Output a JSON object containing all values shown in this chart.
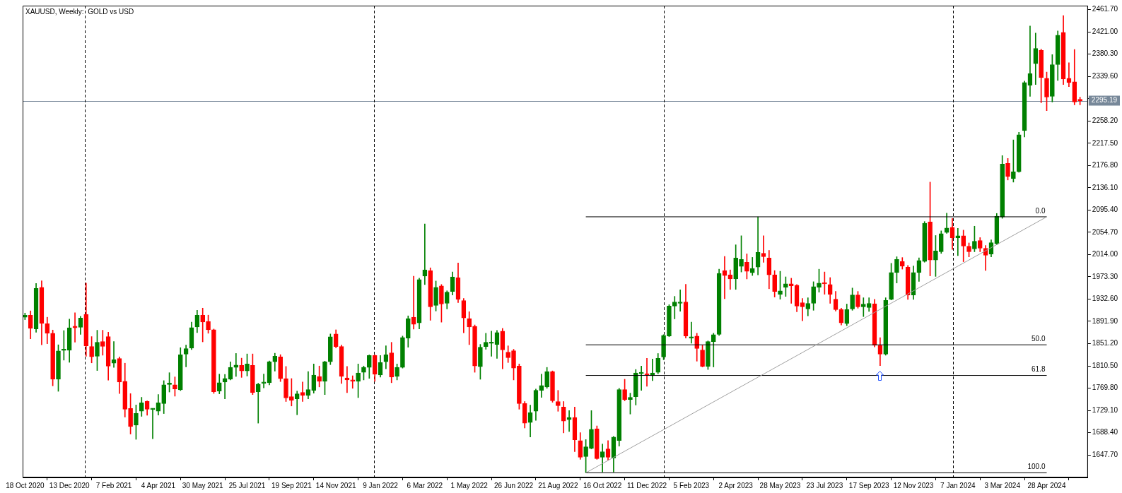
{
  "chart_data": {
    "type": "candlestick",
    "title": "XAUUSD, Weekly:  GOLD vs USD",
    "x": [
      "2020-10-18",
      "2020-10-25",
      "2020-11-01",
      "2020-11-08",
      "2020-11-15",
      "2020-11-22",
      "2020-11-29",
      "2020-12-06",
      "2020-12-13",
      "2020-12-20",
      "2020-12-27",
      "2021-01-03",
      "2021-01-10",
      "2021-01-17",
      "2021-01-24",
      "2021-01-31",
      "2021-02-07",
      "2021-02-14",
      "2021-02-21",
      "2021-02-28",
      "2021-03-07",
      "2021-03-14",
      "2021-03-21",
      "2021-03-28",
      "2021-04-04",
      "2021-04-11",
      "2021-04-18",
      "2021-04-25",
      "2021-05-02",
      "2021-05-09",
      "2021-05-16",
      "2021-05-23",
      "2021-05-30",
      "2021-06-06",
      "2021-06-13",
      "2021-06-20",
      "2021-06-27",
      "2021-07-04",
      "2021-07-11",
      "2021-07-18",
      "2021-07-25",
      "2021-08-01",
      "2021-08-08",
      "2021-08-15",
      "2021-08-22",
      "2021-08-29",
      "2021-09-05",
      "2021-09-12",
      "2021-09-19",
      "2021-09-26",
      "2021-10-03",
      "2021-10-10",
      "2021-10-17",
      "2021-10-24",
      "2021-10-31",
      "2021-11-07",
      "2021-11-14",
      "2021-11-21",
      "2021-11-28",
      "2021-12-05",
      "2021-12-12",
      "2021-12-19",
      "2021-12-26",
      "2022-01-02",
      "2022-01-09",
      "2022-01-16",
      "2022-01-23",
      "2022-01-30",
      "2022-02-06",
      "2022-02-13",
      "2022-02-20",
      "2022-02-27",
      "2022-03-06",
      "2022-03-13",
      "2022-03-20",
      "2022-03-27",
      "2022-04-03",
      "2022-04-10",
      "2022-04-17",
      "2022-04-24",
      "2022-05-01",
      "2022-05-08",
      "2022-05-15",
      "2022-05-22",
      "2022-05-29",
      "2022-06-05",
      "2022-06-12",
      "2022-06-19",
      "2022-06-26",
      "2022-07-03",
      "2022-07-10",
      "2022-07-17",
      "2022-07-24",
      "2022-07-31",
      "2022-08-07",
      "2022-08-14",
      "2022-08-21",
      "2022-08-28",
      "2022-09-04",
      "2022-09-11",
      "2022-09-18",
      "2022-09-25",
      "2022-10-02",
      "2022-10-09",
      "2022-10-16",
      "2022-10-23",
      "2022-10-30",
      "2022-11-06",
      "2022-11-13",
      "2022-11-20",
      "2022-11-27",
      "2022-12-04",
      "2022-12-11",
      "2022-12-18",
      "2022-12-25",
      "2023-01-01",
      "2023-01-08",
      "2023-01-15",
      "2023-01-22",
      "2023-01-29",
      "2023-02-05",
      "2023-02-12",
      "2023-02-19",
      "2023-02-26",
      "2023-03-05",
      "2023-03-12",
      "2023-03-19",
      "2023-03-26",
      "2023-04-02",
      "2023-04-09",
      "2023-04-16",
      "2023-04-23",
      "2023-04-30",
      "2023-05-07",
      "2023-05-14",
      "2023-05-21",
      "2023-05-28",
      "2023-06-04",
      "2023-06-11",
      "2023-06-18",
      "2023-06-25",
      "2023-07-02",
      "2023-07-09",
      "2023-07-16",
      "2023-07-23",
      "2023-07-30",
      "2023-08-06",
      "2023-08-13",
      "2023-08-20",
      "2023-08-27",
      "2023-09-03",
      "2023-09-10",
      "2023-09-17",
      "2023-09-24",
      "2023-10-01",
      "2023-10-08",
      "2023-10-15",
      "2023-10-22",
      "2023-10-29",
      "2023-11-05",
      "2023-11-12",
      "2023-11-19",
      "2023-11-26",
      "2023-12-03",
      "2023-12-10",
      "2023-12-17",
      "2023-12-24",
      "2023-12-31",
      "2024-01-07",
      "2024-01-14",
      "2024-01-21",
      "2024-01-28",
      "2024-02-04",
      "2024-02-11",
      "2024-02-18",
      "2024-02-25",
      "2024-03-03",
      "2024-03-10",
      "2024-03-17",
      "2024-03-24",
      "2024-03-31",
      "2024-04-07",
      "2024-04-14",
      "2024-04-21",
      "2024-04-28",
      "2024-05-05",
      "2024-05-12",
      "2024-05-19",
      "2024-05-26",
      "2024-06-02",
      "2024-06-09"
    ],
    "ohlc": [
      [
        1899.4,
        1907,
        1895,
        1903.2
      ],
      [
        1903.2,
        1911,
        1860,
        1879
      ],
      [
        1878,
        1961,
        1872,
        1952
      ],
      [
        1954,
        1966,
        1849,
        1888
      ],
      [
        1887.5,
        1899.4,
        1851,
        1870
      ],
      [
        1870,
        1876,
        1774,
        1786
      ],
      [
        1786,
        1849,
        1764,
        1838
      ],
      [
        1838.6,
        1875,
        1821,
        1839.2
      ],
      [
        1839.1,
        1896,
        1817,
        1880
      ],
      [
        1883,
        1907.5,
        1854,
        1880
      ],
      [
        1881,
        1901,
        1868,
        1898
      ],
      [
        1904.5,
        1961.8,
        1828,
        1847
      ],
      [
        1846,
        1864,
        1816,
        1827
      ],
      [
        1828,
        1875.6,
        1802,
        1853.6
      ],
      [
        1855,
        1875.6,
        1830,
        1846
      ],
      [
        1864,
        1872,
        1784.4,
        1810
      ],
      [
        1815.4,
        1855,
        1807.7,
        1821.7
      ],
      [
        1824,
        1827,
        1760,
        1781
      ],
      [
        1782.3,
        1815.4,
        1716.9,
        1731.3
      ],
      [
        1732.6,
        1759.8,
        1685.9,
        1699.5
      ],
      [
        1702,
        1739,
        1676.2,
        1723.7
      ],
      [
        1727.5,
        1753,
        1718.2,
        1742.8
      ],
      [
        1745.4,
        1746.6,
        1720.3,
        1731.3
      ],
      [
        1730.6,
        1732.6,
        1677.4,
        1731.2
      ],
      [
        1727.5,
        1758.1,
        1720.7,
        1742.8
      ],
      [
        1741.5,
        1783.5,
        1723.3,
        1775.9
      ],
      [
        1776.4,
        1798,
        1762.7,
        1777
      ],
      [
        1775.9,
        1790.3,
        1755.1,
        1768.3
      ],
      [
        1766.6,
        1843.8,
        1765.3,
        1830.7
      ],
      [
        1831.9,
        1848.5,
        1808.6,
        1842.1
      ],
      [
        1842.9,
        1890.5,
        1840.4,
        1880.3
      ],
      [
        1881.6,
        1912.1,
        1871.4,
        1903.2
      ],
      [
        1903.2,
        1916,
        1854.4,
        1890.5
      ],
      [
        1891.8,
        1903.2,
        1870.1,
        1876.5
      ],
      [
        1876.5,
        1877.8,
        1760.2,
        1763.2
      ],
      [
        1764.4,
        1795.4,
        1759.4,
        1779.7
      ],
      [
        1781,
        1795,
        1750.4,
        1787.4
      ],
      [
        1786.1,
        1817.9,
        1784.8,
        1807.7
      ],
      [
        1807.7,
        1833.2,
        1791.2,
        1812
      ],
      [
        1811.5,
        1824.6,
        1789.4,
        1801.3
      ],
      [
        1801.3,
        1832.3,
        1792,
        1814
      ],
      [
        1811.5,
        1832.3,
        1758,
        1761.4
      ],
      [
        1763.1,
        1778.8,
        1705.8,
        1777.1
      ],
      [
        1778.4,
        1795.4,
        1770.3,
        1781
      ],
      [
        1779.7,
        1819.6,
        1775.8,
        1818.3
      ],
      [
        1817.9,
        1833.6,
        1800.9,
        1828
      ],
      [
        1826.8,
        1831,
        1781.8,
        1786.9
      ],
      [
        1787.3,
        1809.4,
        1745.3,
        1751.7
      ],
      [
        1754.2,
        1787.3,
        1737.2,
        1747.8
      ],
      [
        1750.4,
        1764.4,
        1721.1,
        1759.3
      ],
      [
        1761.9,
        1781,
        1745.3,
        1756.8
      ],
      [
        1756.8,
        1800,
        1750.4,
        1767
      ],
      [
        1765.7,
        1814,
        1760.6,
        1793.7
      ],
      [
        1791.1,
        1810.2,
        1772,
        1782.2
      ],
      [
        1782.2,
        1819.1,
        1758,
        1817.9
      ],
      [
        1817.9,
        1868.8,
        1812.8,
        1863.7
      ],
      [
        1868.8,
        1876.4,
        1843.3,
        1845.9
      ],
      [
        1845.9,
        1848.4,
        1778.4,
        1791.1
      ],
      [
        1788.6,
        1809.4,
        1761.4,
        1784.8
      ],
      [
        1784.8,
        1792.4,
        1769.5,
        1782.2
      ],
      [
        1782.2,
        1814,
        1752.5,
        1797.5
      ],
      [
        1798.8,
        1810.2,
        1784.8,
        1807.7
      ],
      [
        1807.7,
        1830.6,
        1787.7,
        1829.3
      ],
      [
        1829.3,
        1830.6,
        1782.2,
        1795
      ],
      [
        1793.7,
        1829.3,
        1789.9,
        1816.6
      ],
      [
        1817.9,
        1847.1,
        1805.1,
        1830.6
      ],
      [
        1834.4,
        1853.5,
        1779.7,
        1789.9
      ],
      [
        1791.1,
        1814,
        1784.8,
        1807.7
      ],
      [
        1807.7,
        1865,
        1806.4,
        1862.4
      ],
      [
        1861.2,
        1901.9,
        1844.6,
        1896.8
      ],
      [
        1899.4,
        1974.5,
        1877.7,
        1886.6
      ],
      [
        1889,
        1970.7,
        1878,
        1968.1
      ],
      [
        1974.5,
        2070,
        1959.2,
        1985.9
      ],
      [
        1984.7,
        1989.7,
        1893.8,
        1918.4
      ],
      [
        1921,
        1965.6,
        1910.8,
        1954.1
      ],
      [
        1956.7,
        1959.2,
        1890.4,
        1923.5
      ],
      [
        1924.8,
        1947.7,
        1914.6,
        1945.2
      ],
      [
        1946.5,
        1982.1,
        1940.1,
        1973.2
      ],
      [
        1971.9,
        1998.7,
        1926.1,
        1932.4
      ],
      [
        1929.9,
        1933.7,
        1870.9,
        1898.1
      ],
      [
        1896.8,
        1909.5,
        1849.3,
        1881.5
      ],
      [
        1882.8,
        1885.3,
        1798.8,
        1810.2
      ],
      [
        1808.9,
        1849.7,
        1786,
        1844.6
      ],
      [
        1845.9,
        1870.1,
        1840.8,
        1853.5
      ],
      [
        1851.5,
        1873.9,
        1828,
        1852.6
      ],
      [
        1849.7,
        1875.2,
        1824.2,
        1871.3
      ],
      [
        1873.9,
        1879,
        1805.1,
        1839.5
      ],
      [
        1835.7,
        1847.1,
        1816.6,
        1825.5
      ],
      [
        1838.2,
        1840.8,
        1784.8,
        1806.4
      ],
      [
        1810.2,
        1814,
        1731.3,
        1741.5
      ],
      [
        1741.5,
        1745.3,
        1696.9,
        1705.8
      ],
      [
        1707.1,
        1738.9,
        1680.4,
        1724.9
      ],
      [
        1727.5,
        1768.2,
        1710.9,
        1765.7
      ],
      [
        1765.7,
        1795.4,
        1752.9,
        1774.6
      ],
      [
        1772,
        1807.7,
        1769.5,
        1800
      ],
      [
        1800,
        1801.3,
        1744,
        1746.6
      ],
      [
        1745.3,
        1765.7,
        1727.5,
        1737.6
      ],
      [
        1735.1,
        1745.3,
        1688,
        1709.6
      ],
      [
        1712.2,
        1728.7,
        1690.5,
        1716
      ],
      [
        1716,
        1735.1,
        1653.6,
        1675.3
      ],
      [
        1674,
        1688.4,
        1639.6,
        1643.4
      ],
      [
        1644.7,
        1675.7,
        1615.4,
        1662.5
      ],
      [
        1660,
        1728.7,
        1658.7,
        1694.4
      ],
      [
        1695.6,
        1700.7,
        1639.6,
        1640.9
      ],
      [
        1643.4,
        1667.6,
        1616.7,
        1653.6
      ],
      [
        1658.7,
        1674,
        1638.3,
        1643.4
      ],
      [
        1642.1,
        1681.6,
        1616.7,
        1680.4
      ],
      [
        1674,
        1769.5,
        1663.8,
        1767
      ],
      [
        1767,
        1786,
        1746.6,
        1749.1
      ],
      [
        1749.1,
        1760.6,
        1722.4,
        1752.9
      ],
      [
        1754.2,
        1803.9,
        1738.9,
        1797.5
      ],
      [
        1796.2,
        1810.2,
        1765.7,
        1796.5
      ],
      [
        1796.2,
        1824.2,
        1773.3,
        1793.7
      ],
      [
        1792.4,
        1823,
        1783.5,
        1797.5
      ],
      [
        1798.8,
        1833.1,
        1796.2,
        1824.2
      ],
      [
        1826.8,
        1867.5,
        1821.7,
        1866.2
      ],
      [
        1865,
        1922.3,
        1864,
        1919.7
      ],
      [
        1919.7,
        1937.5,
        1896.4,
        1927.4
      ],
      [
        1924.8,
        1949.4,
        1910.4,
        1927.4
      ],
      [
        1927.4,
        1959.6,
        1861.2,
        1865
      ],
      [
        1861.2,
        1890.4,
        1851.8,
        1863.7
      ],
      [
        1865,
        1870.1,
        1819.1,
        1842.1
      ],
      [
        1839.5,
        1848.4,
        1808.5,
        1809.8
      ],
      [
        1809.8,
        1856.1,
        1803.9,
        1854.8
      ],
      [
        1854.8,
        1870.1,
        1808.5,
        1867.5
      ],
      [
        1868,
        1987.2,
        1866,
        1979.6
      ],
      [
        1984.7,
        2010.5,
        1933.3,
        1975.7
      ],
      [
        1977,
        1985.9,
        1950.3,
        1969.4
      ],
      [
        1969.4,
        2031.8,
        1950.3,
        2007.6
      ],
      [
        1992.3,
        2048.3,
        1982.1,
        2005
      ],
      [
        1999.9,
        2015.2,
        1969.4,
        1983.4
      ],
      [
        1980.8,
        2008.8,
        1975.7,
        1988.5
      ],
      [
        1991,
        2082.7,
        1977,
        2017.8
      ],
      [
        2016.5,
        2048.3,
        1999.9,
        2010.1
      ],
      [
        2007.6,
        2021.6,
        1951.5,
        1977
      ],
      [
        1977,
        1984.7,
        1936.3,
        1946.5
      ],
      [
        1941.4,
        1983.4,
        1932.4,
        1947.7
      ],
      [
        1954.1,
        1973.2,
        1937.5,
        1960.5
      ],
      [
        1960.5,
        1970.7,
        1924.8,
        1956.7
      ],
      [
        1957.9,
        1959.2,
        1909.5,
        1919.7
      ],
      [
        1926.1,
        1933.7,
        1893,
        1918.4
      ],
      [
        1914.6,
        1935,
        1901.9,
        1924.8
      ],
      [
        1924.8,
        1964.3,
        1912.1,
        1955.4
      ],
      [
        1954.1,
        1987.2,
        1945.2,
        1961.7
      ],
      [
        1960.7,
        1982.1,
        1941.4,
        1960.3
      ],
      [
        1959.2,
        1971.9,
        1924.8,
        1941.4
      ],
      [
        1932.4,
        1946.5,
        1910.8,
        1913.4
      ],
      [
        1913.4,
        1915.9,
        1885.3,
        1889.2
      ],
      [
        1887.9,
        1923.5,
        1884.1,
        1913.4
      ],
      [
        1914.6,
        1952.8,
        1912.1,
        1940.1
      ],
      [
        1940.1,
        1946.5,
        1915.9,
        1918.4
      ],
      [
        1918.4,
        1935,
        1900.6,
        1923.5
      ],
      [
        1917.2,
        1935,
        1910,
        1924.8
      ],
      [
        1924,
        1932,
        1845,
        1848
      ],
      [
        1848,
        1862,
        1811,
        1832
      ],
      [
        1832,
        1935,
        1830,
        1930
      ],
      [
        1932,
        1998,
        1931,
        1981
      ],
      [
        1981,
        2010,
        1962,
        2005
      ],
      [
        2001.3,
        2008.5,
        1987.3,
        1992.8
      ],
      [
        1991,
        1994,
        1932,
        1940
      ],
      [
        1940,
        1993,
        1932,
        1981
      ],
      [
        1981,
        2008,
        1965,
        2003
      ],
      [
        2001.3,
        2074.3,
        2000,
        2071.3
      ],
      [
        2073.9,
        2146.4,
        1975,
        2003.8
      ],
      [
        2003.8,
        2048.8,
        1974,
        2020.4
      ],
      [
        2019.1,
        2057.3,
        2016.1,
        2052.2
      ],
      [
        2054.3,
        2089.6,
        2052.6,
        2062.4
      ],
      [
        2063.7,
        2079.8,
        2023.4,
        2044.6
      ],
      [
        2044.6,
        2062,
        2012,
        2048.4
      ],
      [
        2048.4,
        2058.6,
        2000.9,
        2029.3
      ],
      [
        2029.3,
        2035.2,
        2009.8,
        2019.1
      ],
      [
        2024.2,
        2065.8,
        2019.1,
        2038.2
      ],
      [
        2039.5,
        2045,
        2019.1,
        2025.5
      ],
      [
        2025.5,
        2030.6,
        1985,
        2012.7
      ],
      [
        2014.9,
        2041,
        2009.8,
        2035.7
      ],
      [
        2033.5,
        2089.1,
        2031.9,
        2084
      ],
      [
        2082.8,
        2194.8,
        2080.2,
        2179.5
      ],
      [
        2180.8,
        2189.7,
        2150.3,
        2156.6
      ],
      [
        2152.8,
        2223.7,
        2146.4,
        2165.5
      ],
      [
        2165.5,
        2237.3,
        2164.3,
        2233
      ],
      [
        2240.7,
        2331.1,
        2228.8,
        2328.5
      ],
      [
        2323.4,
        2431.7,
        2303.1,
        2345.1
      ],
      [
        2362.9,
        2418.9,
        2324.7,
        2390.9
      ],
      [
        2387.1,
        2389.6,
        2291.6,
        2337.4
      ],
      [
        2336.2,
        2347.6,
        2277.2,
        2301.8
      ],
      [
        2303.1,
        2379.4,
        2292.9,
        2361.2
      ],
      [
        2361.2,
        2422.7,
        2332.3,
        2415.1
      ],
      [
        2420.2,
        2450.7,
        2324.7,
        2334.9
      ],
      [
        2336.2,
        2364.6,
        2320.9,
        2328.5
      ],
      [
        2329.8,
        2388.8,
        2287.8,
        2292.9
      ],
      [
        2295.6,
        2301.8,
        2287.8,
        2295.19
      ]
    ],
    "colors": [
      "#008000",
      "#ff0000",
      "#008000",
      "#ff0000",
      "#ff0000",
      "#ff0000",
      "#008000",
      "#008000",
      "#008000",
      "#ff0000",
      "#008000",
      "#ff0000",
      "#ff0000",
      "#008000",
      "#ff0000",
      "#ff0000",
      "#008000",
      "#ff0000",
      "#ff0000",
      "#ff0000",
      "#008000",
      "#008000",
      "#ff0000",
      "#008000",
      "#008000",
      "#008000",
      "#008000",
      "#ff0000",
      "#008000",
      "#008000",
      "#008000",
      "#008000",
      "#ff0000",
      "#ff0000",
      "#ff0000",
      "#008000",
      "#008000",
      "#008000",
      "#008000",
      "#ff0000",
      "#008000",
      "#ff0000",
      "#008000",
      "#008000",
      "#008000",
      "#008000",
      "#ff0000",
      "#ff0000",
      "#ff0000",
      "#008000",
      "#ff0000",
      "#008000",
      "#008000",
      "#ff0000",
      "#008000",
      "#008000",
      "#ff0000",
      "#ff0000",
      "#ff0000",
      "#ff0000",
      "#008000",
      "#008000",
      "#008000",
      "#ff0000",
      "#008000",
      "#008000",
      "#ff0000",
      "#008000",
      "#008000",
      "#008000",
      "#ff0000",
      "#008000",
      "#008000",
      "#ff0000",
      "#008000",
      "#ff0000",
      "#008000",
      "#008000",
      "#ff0000",
      "#ff0000",
      "#ff0000",
      "#ff0000",
      "#008000",
      "#008000",
      "#008000",
      "#008000",
      "#ff0000",
      "#ff0000",
      "#ff0000",
      "#ff0000",
      "#ff0000",
      "#008000",
      "#008000",
      "#008000",
      "#008000",
      "#ff0000",
      "#ff0000",
      "#ff0000",
      "#008000",
      "#ff0000",
      "#ff0000",
      "#008000",
      "#008000",
      "#ff0000",
      "#008000",
      "#ff0000",
      "#008000",
      "#008000",
      "#ff0000",
      "#008000",
      "#008000",
      "#008000",
      "#ff0000",
      "#008000",
      "#008000",
      "#008000",
      "#008000",
      "#008000",
      "#008000",
      "#ff0000",
      "#008000",
      "#ff0000",
      "#ff0000",
      "#008000",
      "#008000",
      "#008000",
      "#ff0000",
      "#ff0000",
      "#008000",
      "#008000",
      "#ff0000",
      "#008000",
      "#008000",
      "#ff0000",
      "#ff0000",
      "#ff0000",
      "#008000",
      "#008000",
      "#ff0000",
      "#ff0000",
      "#ff0000",
      "#008000",
      "#008000",
      "#008000",
      "#ff0000",
      "#ff0000",
      "#ff0000",
      "#ff0000",
      "#008000",
      "#008000",
      "#ff0000",
      "#008000",
      "#008000",
      "#ff0000",
      "#ff0000",
      "#008000",
      "#008000",
      "#008000",
      "#ff0000",
      "#ff0000",
      "#008000",
      "#008000",
      "#008000",
      "#ff0000",
      "#008000",
      "#008000",
      "#008000",
      "#ff0000",
      "#008000",
      "#ff0000",
      "#ff0000",
      "#008000",
      "#ff0000",
      "#ff0000",
      "#008000",
      "#008000",
      "#008000",
      "#ff0000",
      "#008000",
      "#008000",
      "#008000",
      "#008000",
      "#008000",
      "#ff0000",
      "#ff0000",
      "#008000",
      "#008000",
      "#ff0000",
      "#ff0000",
      "#ff0000",
      "#ff0000"
    ],
    "series": [
      {
        "type": "line",
        "color": "#a0a0a0",
        "x": [
          "2022-09-25",
          "2024-04-28"
        ],
        "values": [
          1615,
          2083
        ]
      },
      {
        "type": "line",
        "name": "0.0",
        "color": "#000000",
        "x": [
          "2022-09-25",
          "2024-04-28"
        ],
        "values": [
          2083,
          2083
        ]
      },
      {
        "type": "line",
        "name": "50.0",
        "color": "#000000",
        "x": [
          "2022-09-25",
          "2024-04-28"
        ],
        "values": [
          1849,
          1849
        ]
      },
      {
        "type": "line",
        "name": "61.8",
        "color": "#000000",
        "x": [
          "2022-09-25",
          "2024-04-28"
        ],
        "values": [
          1793,
          1793
        ]
      },
      {
        "type": "line",
        "name": "100.0",
        "color": "#000000",
        "x": [
          "2022-09-25",
          "2024-04-28"
        ],
        "values": [
          1615,
          1615
        ]
      }
    ],
    "ref_lines": [
      {
        "axis": "y",
        "value": 2295.19,
        "label": "2295.19",
        "color": "#778899"
      },
      {
        "axis": "x",
        "value": "2021-01-01",
        "line_style": "dashed",
        "color": "#000000"
      },
      {
        "axis": "x",
        "value": "2022-01-01",
        "line_style": "dashed",
        "color": "#000000"
      },
      {
        "axis": "x",
        "value": "2023-01-01",
        "line_style": "dashed",
        "color": "#000000"
      },
      {
        "axis": "x",
        "value": "2024-01-01",
        "line_style": "dashed",
        "color": "#000000"
      }
    ],
    "xlim": [
      "2020-10-15",
      "2024-06-19"
    ],
    "xticks": [
      {
        "value": "2020-10-18",
        "label": "18 Oct 2020"
      },
      {
        "value": "2020-12-13",
        "label": "13 Dec 2020"
      },
      {
        "value": "2021-02-07",
        "label": "7 Feb 2021"
      },
      {
        "value": "2021-04-04",
        "label": "4 Apr 2021"
      },
      {
        "value": "2021-05-30",
        "label": "30 May 2021"
      },
      {
        "value": "2021-07-25",
        "label": "25 Jul 2021"
      },
      {
        "value": "2021-09-19",
        "label": "19 Sep 2021"
      },
      {
        "value": "2021-11-14",
        "label": "14 Nov 2021"
      },
      {
        "value": "2022-01-09",
        "label": "9 Jan 2022"
      },
      {
        "value": "2022-03-06",
        "label": "6 Mar 2022"
      },
      {
        "value": "2022-05-01",
        "label": "1 May 2022"
      },
      {
        "value": "2022-06-26",
        "label": "26 Jun 2022"
      },
      {
        "value": "2022-08-21",
        "label": "21 Aug 2022"
      },
      {
        "value": "2022-10-16",
        "label": "16 Oct 2022"
      },
      {
        "value": "2022-12-11",
        "label": "11 Dec 2022"
      },
      {
        "value": "2023-02-05",
        "label": "5 Feb 2023"
      },
      {
        "value": "2023-04-02",
        "label": "2 Apr 2023"
      },
      {
        "value": "2023-05-28",
        "label": "28 May 2023"
      },
      {
        "value": "2023-07-23",
        "label": "23 Jul 2023"
      },
      {
        "value": "2023-09-17",
        "label": "17 Sep 2023"
      },
      {
        "value": "2023-11-12",
        "label": "12 Nov 2023"
      },
      {
        "value": "2024-01-07",
        "label": "7 Jan 2024"
      },
      {
        "value": "2024-03-03",
        "label": "3 Mar 2024"
      },
      {
        "value": "2024-04-28",
        "label": "28 Apr 2024"
      }
    ],
    "ylim": [
      1606.5,
      2469.0
    ],
    "yticks": [
      {
        "value": 1647.7,
        "label": "1647.70"
      },
      {
        "value": 1688.4,
        "label": "1688.40"
      },
      {
        "value": 1729.1,
        "label": "1729.10"
      },
      {
        "value": 1769.8,
        "label": "1769.80"
      },
      {
        "value": 1810.5,
        "label": "1810.50"
      },
      {
        "value": 1851.2,
        "label": "1851.20"
      },
      {
        "value": 1891.9,
        "label": "1891.90"
      },
      {
        "value": 1932.6,
        "label": "1932.60"
      },
      {
        "value": 1973.3,
        "label": "1973.30"
      },
      {
        "value": 2014,
        "label": "2014.00"
      },
      {
        "value": 2054.7,
        "label": "2054.70"
      },
      {
        "value": 2095.4,
        "label": "2095.40"
      },
      {
        "value": 2136.1,
        "label": "2136.10"
      },
      {
        "value": 2176.8,
        "label": "2176.80"
      },
      {
        "value": 2217.5,
        "label": "2217.50"
      },
      {
        "value": 2258.2,
        "label": "2258.20"
      },
      {
        "value": 2298.9,
        "label": null
      },
      {
        "value": 2339.6,
        "label": "2339.60"
      },
      {
        "value": 2380.3,
        "label": "2380.30"
      },
      {
        "value": 2421,
        "label": "2421.00"
      },
      {
        "value": 2461.7,
        "label": "2461.70"
      }
    ]
  }
}
